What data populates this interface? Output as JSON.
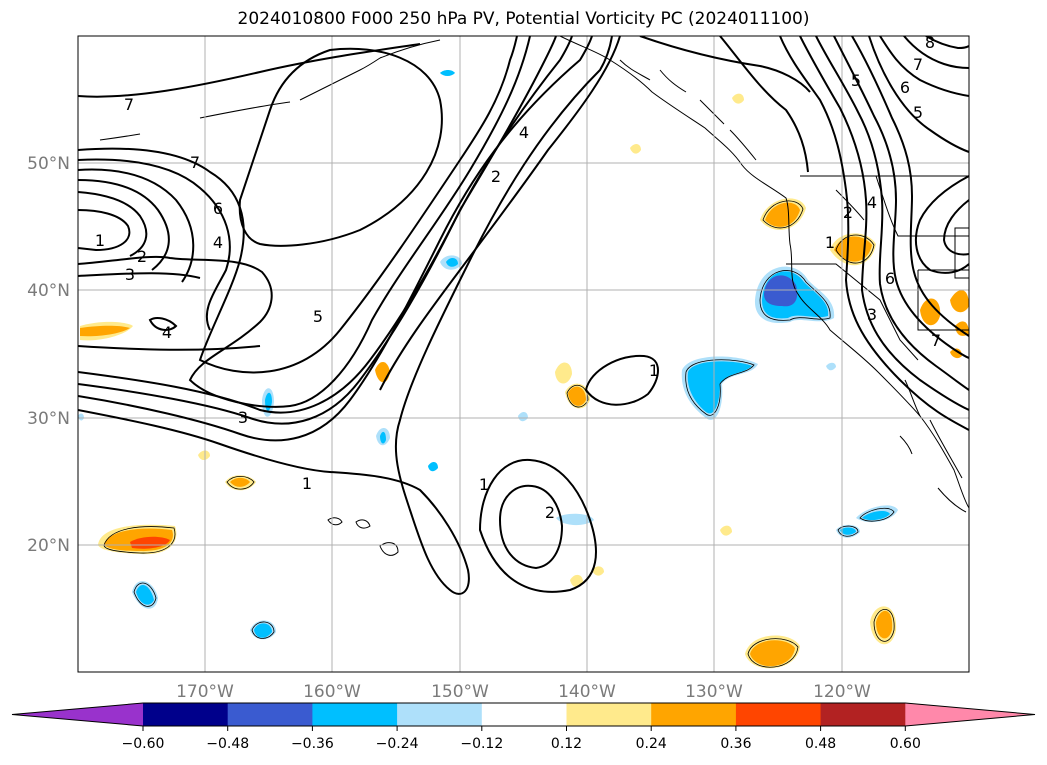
{
  "title": "2024010800 F000 250 hPa PV, Potential Vorticity PC (2024011100)",
  "map": {
    "lon_range": [
      -180,
      -110
    ],
    "lat_range": [
      10,
      60
    ],
    "gridlines": true,
    "lat_ticks": [
      "50°N",
      "40°N",
      "30°N",
      "20°N"
    ],
    "lon_ticks": [
      "170°W",
      "160°W",
      "150°W",
      "140°W",
      "130°W",
      "120°W"
    ],
    "contour_labels": [
      "7",
      "7",
      "6",
      "4",
      "1",
      "2",
      "3",
      "4",
      "5",
      "3",
      "1",
      "4",
      "2",
      "1",
      "2",
      "1",
      "5",
      "6",
      "7",
      "8",
      "5",
      "2",
      "4",
      "1",
      "6",
      "7",
      "3"
    ]
  },
  "colorbar": {
    "levels": [
      "−0.60",
      "−0.48",
      "−0.36",
      "−0.24",
      "−0.12",
      "0.12",
      "0.24",
      "0.36",
      "0.48",
      "0.60"
    ],
    "colors": [
      "#9932cc",
      "#00008b",
      "#3a5bd0",
      "#00bfff",
      "#aee0fa",
      "#ffffff",
      "#ffea8c",
      "#ffa500",
      "#ff4500",
      "#b22222",
      "#ff88aa"
    ]
  }
}
